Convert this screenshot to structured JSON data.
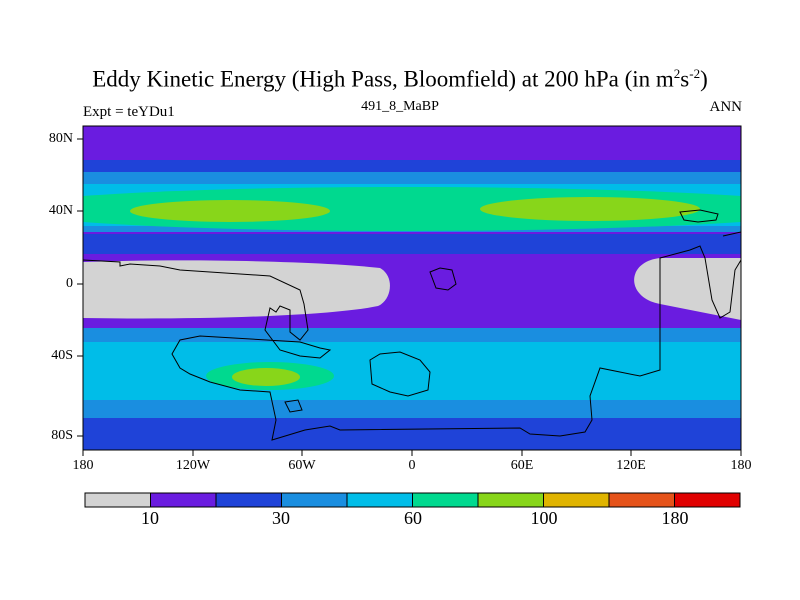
{
  "title": {
    "main": "Eddy Kinetic Energy (High Pass, Bloomfield) at 200 hPa (in m",
    "sup1": "2",
    "mid": "s",
    "sup2": "-2",
    "end": ")"
  },
  "subtitle": "491_8_MaBP",
  "left_label": "Expt = teYDu1",
  "right_label": "ANN",
  "lat_labels": [
    "80N",
    "40N",
    "0",
    "40S",
    "80S"
  ],
  "lon_labels": [
    "180",
    "120W",
    "60W",
    "0",
    "60E",
    "120E",
    "180"
  ],
  "colorbar": {
    "colors": [
      "#d3d3d3",
      "#6a1ce0",
      "#1f43d8",
      "#1a8ee0",
      "#00bde8",
      "#00d98f",
      "#88d61a",
      "#e0b400",
      "#e5531a",
      "#e00000"
    ],
    "labels": [
      "10",
      "30",
      "60",
      "100",
      "180"
    ]
  },
  "colors": {
    "land_outline": "#000000",
    "frame": "#000000"
  }
}
